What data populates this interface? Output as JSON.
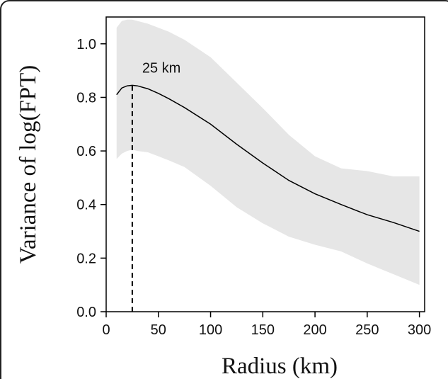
{
  "chart_data": {
    "type": "line",
    "title": "",
    "xlabel": "Radius (km)",
    "ylabel": "Variance of log(FPT)",
    "xlim": [
      0,
      305
    ],
    "ylim": [
      0,
      1.1
    ],
    "x_ticks": [
      0,
      50,
      100,
      150,
      200,
      250,
      300
    ],
    "y_ticks": [
      0.0,
      0.2,
      0.4,
      0.6,
      0.8,
      1.0
    ],
    "x_tick_labels": [
      "0",
      "50",
      "100",
      "150",
      "200",
      "250",
      "300"
    ],
    "y_tick_labels": [
      "0.0",
      "0.2",
      "0.4",
      "0.6",
      "0.8",
      "1.0"
    ],
    "grid": false,
    "series": [
      {
        "x": [
          10,
          15,
          20,
          25,
          30,
          40,
          50,
          60,
          75,
          100,
          125,
          150,
          175,
          200,
          225,
          250,
          275,
          300
        ],
        "y": [
          0.81,
          0.835,
          0.843,
          0.845,
          0.843,
          0.832,
          0.815,
          0.795,
          0.762,
          0.7,
          0.625,
          0.555,
          0.49,
          0.44,
          0.4,
          0.362,
          0.333,
          0.3
        ],
        "ci_lower": [
          0.57,
          0.59,
          0.6,
          0.605,
          0.6,
          0.595,
          0.58,
          0.565,
          0.54,
          0.47,
          0.39,
          0.33,
          0.28,
          0.25,
          0.225,
          0.18,
          0.14,
          0.1
        ],
        "ci_upper": [
          1.06,
          1.085,
          1.09,
          1.09,
          1.085,
          1.075,
          1.06,
          1.045,
          1.015,
          0.95,
          0.855,
          0.76,
          0.66,
          0.58,
          0.535,
          0.525,
          0.505,
          0.505
        ],
        "color": "#000000",
        "band_color": "#e6e6e6"
      }
    ],
    "annotations": [
      {
        "text": "25 km",
        "x": 25,
        "y": 0.845
      }
    ],
    "vline": {
      "x": 25,
      "from": 0,
      "to": 0.845,
      "style": "dashed"
    }
  }
}
